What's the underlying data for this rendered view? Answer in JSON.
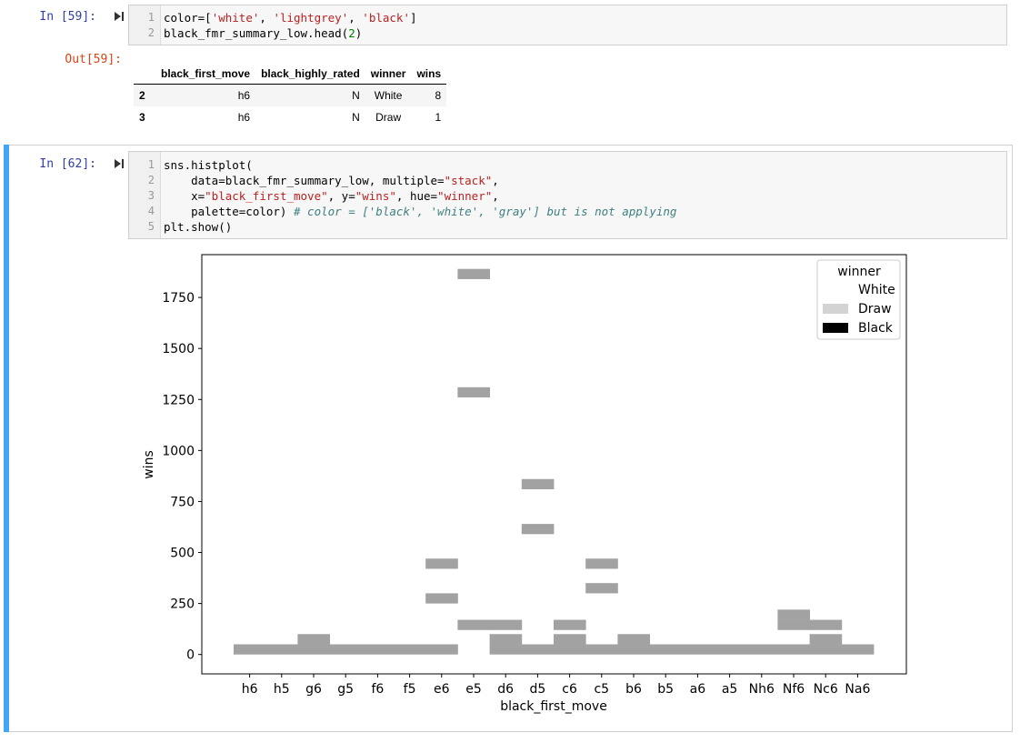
{
  "cell1": {
    "prompt": "In [59]:",
    "lines": [
      "1",
      "2"
    ],
    "code_line1_a": "color=[",
    "code_line1_s1": "'white'",
    "code_line1_sep1": ", ",
    "code_line1_s2": "'lightgrey'",
    "code_line1_sep2": ", ",
    "code_line1_s3": "'black'",
    "code_line1_end": "]",
    "code_line2_a": "black_fmr_summary_low.head(",
    "code_line2_n": "2",
    "code_line2_end": ")"
  },
  "output1": {
    "prompt": "Out[59]:",
    "columns": [
      "",
      "black_first_move",
      "black_highly_rated",
      "winner",
      "wins"
    ],
    "rows": [
      [
        "2",
        "h6",
        "N",
        "White",
        "8"
      ],
      [
        "3",
        "h6",
        "N",
        "Draw",
        "1"
      ]
    ]
  },
  "cell2": {
    "prompt": "In [62]:",
    "lines": [
      "1",
      "2",
      "3",
      "4",
      "5"
    ],
    "l1": "sns.histplot(",
    "l2_a": "    data=black_fmr_summary_low, multiple=",
    "l2_s": "\"stack\"",
    "l2_end": ",",
    "l3_a": "    x=",
    "l3_s1": "\"black_first_move\"",
    "l3_b": ", y=",
    "l3_s2": "\"wins\"",
    "l3_c": ", hue=",
    "l3_s3": "\"winner\"",
    "l3_end": ",",
    "l4_a": "    palette=color) ",
    "l4_comment": "# color = ['black', 'white', 'gray'] but is not applying",
    "l5": "plt.show()"
  },
  "chart_data": {
    "type": "bar",
    "xlabel": "black_first_move",
    "ylabel": "wins",
    "categories": [
      "h6",
      "h5",
      "g6",
      "g5",
      "f6",
      "f5",
      "e6",
      "e5",
      "d6",
      "d5",
      "c6",
      "c5",
      "b6",
      "b5",
      "a6",
      "a5",
      "Nh6",
      "Nf6",
      "Nc6",
      "Na6"
    ],
    "yticks": [
      0,
      250,
      500,
      750,
      1000,
      1250,
      1500,
      1750
    ],
    "ylim": [
      -95,
      1960
    ],
    "bin_height": 50,
    "bars": [
      {
        "cat": 0,
        "y": 0
      },
      {
        "cat": 1,
        "y": 0
      },
      {
        "cat": 2,
        "y": 0
      },
      {
        "cat": 2,
        "y": 50
      },
      {
        "cat": 3,
        "y": 0
      },
      {
        "cat": 4,
        "y": 0
      },
      {
        "cat": 5,
        "y": 0
      },
      {
        "cat": 6,
        "y": 0
      },
      {
        "cat": 6,
        "y": 250
      },
      {
        "cat": 6,
        "y": 420
      },
      {
        "cat": 7,
        "y": 120
      },
      {
        "cat": 7,
        "y": 1260
      },
      {
        "cat": 7,
        "y": 1840
      },
      {
        "cat": 8,
        "y": 0
      },
      {
        "cat": 8,
        "y": 50
      },
      {
        "cat": 8,
        "y": 120
      },
      {
        "cat": 9,
        "y": 0
      },
      {
        "cat": 9,
        "y": 590
      },
      {
        "cat": 9,
        "y": 810
      },
      {
        "cat": 10,
        "y": 0
      },
      {
        "cat": 10,
        "y": 50
      },
      {
        "cat": 10,
        "y": 120
      },
      {
        "cat": 11,
        "y": 0
      },
      {
        "cat": 11,
        "y": 300
      },
      {
        "cat": 11,
        "y": 420
      },
      {
        "cat": 12,
        "y": 0
      },
      {
        "cat": 12,
        "y": 50
      },
      {
        "cat": 13,
        "y": 0
      },
      {
        "cat": 14,
        "y": 0
      },
      {
        "cat": 15,
        "y": 0
      },
      {
        "cat": 16,
        "y": 0
      },
      {
        "cat": 17,
        "y": 0
      },
      {
        "cat": 17,
        "y": 120
      },
      {
        "cat": 17,
        "y": 170
      },
      {
        "cat": 18,
        "y": 0
      },
      {
        "cat": 18,
        "y": 50
      },
      {
        "cat": 18,
        "y": 120
      },
      {
        "cat": 19,
        "y": 0
      }
    ],
    "bar_color": "#a2a2a2",
    "legend": {
      "title": "winner",
      "placement": "top-right",
      "entries": [
        {
          "label": "White",
          "color": "#ffffff"
        },
        {
          "label": "Draw",
          "color": "#d3d3d3"
        },
        {
          "label": "Black",
          "color": "#000000"
        }
      ]
    }
  }
}
